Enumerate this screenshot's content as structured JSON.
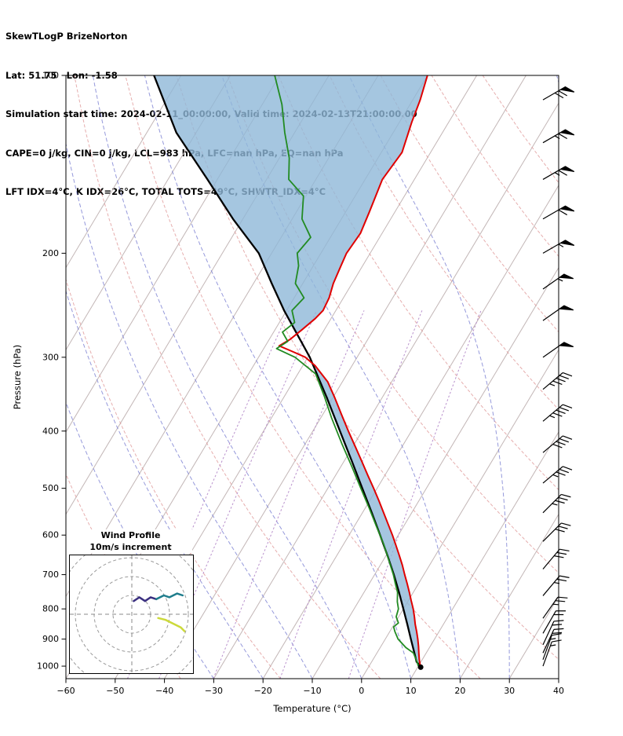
{
  "header": {
    "title": "SkewTLogP BrizeNorton",
    "location_line": "Lat: 51.75   Lon: -1.58",
    "time_line": "Simulation start time: 2024-02-11_00:00:00, Valid time: 2024-02-13T21:00:00.00",
    "indices_line_1": "CAPE=0 j/kg, CIN=0 j/kg, LCL=983 hPa, LFC=nan hPa, EQ=nan hPa",
    "indices_line_2": "LFT IDX=4°C, K IDX=26°C, TOTAL TOTS=49°C, SHWTR_IDX=4°C"
  },
  "chart_data": {
    "type": "line",
    "variant": "skew-t-log-p",
    "x_axis": {
      "label": "Temperature (°C)",
      "min": -60,
      "max": 40,
      "ticks": [
        -60,
        -50,
        -40,
        -30,
        -20,
        -10,
        0,
        10,
        20,
        30,
        40
      ]
    },
    "y_axis": {
      "label": "Pressure (hPa)",
      "top": 100,
      "bottom": 1050,
      "scale": "log",
      "ticks": [
        100,
        200,
        300,
        400,
        500,
        600,
        700,
        800,
        900,
        1000
      ]
    },
    "background": {
      "isotherms": {
        "color": "#c2b6b6",
        "start": -110,
        "end": 40,
        "step": 10
      },
      "dry_adiabats": {
        "color": "#e09a9a",
        "theta_values_c": [
          -40,
          -20,
          0,
          20,
          40,
          60,
          80,
          100,
          120,
          140,
          160
        ]
      },
      "moist_adiabats": {
        "color": "#7b80d2",
        "start_temps_c": [
          -30,
          -20,
          -10,
          0,
          10,
          20,
          30,
          40
        ]
      },
      "mixing_ratio_lines": {
        "color": "#b286c8",
        "values_g_kg": [
          0.05,
          0.1,
          0.3,
          1,
          3
        ],
        "p_top": 250
      }
    },
    "fill_between_parcel_and_temperature": {
      "color": "#8fb8d8",
      "opacity": 0.8
    },
    "series": [
      {
        "name": "temperature",
        "color": "#e00000",
        "width": 2,
        "points": [
          [
            1000,
            10.4
          ],
          [
            975,
            9.4
          ],
          [
            950,
            8.5
          ],
          [
            925,
            7.6
          ],
          [
            900,
            6.6
          ],
          [
            875,
            5.5
          ],
          [
            850,
            4.3
          ],
          [
            825,
            3.2
          ],
          [
            800,
            2.0
          ],
          [
            775,
            0.6
          ],
          [
            750,
            -0.8
          ],
          [
            725,
            -2.3
          ],
          [
            700,
            -3.9
          ],
          [
            675,
            -5.5
          ],
          [
            650,
            -7.3
          ],
          [
            625,
            -9.2
          ],
          [
            600,
            -11.2
          ],
          [
            575,
            -13.4
          ],
          [
            550,
            -15.7
          ],
          [
            525,
            -18.1
          ],
          [
            500,
            -20.7
          ],
          [
            475,
            -23.5
          ],
          [
            450,
            -26.4
          ],
          [
            425,
            -29.5
          ],
          [
            400,
            -32.8
          ],
          [
            375,
            -36.2
          ],
          [
            350,
            -39.8
          ],
          [
            330,
            -43.0
          ],
          [
            310,
            -47.5
          ],
          [
            300,
            -50.5
          ],
          [
            293,
            -54.0
          ],
          [
            287,
            -57.2
          ],
          [
            280,
            -55.8
          ],
          [
            270,
            -54.6
          ],
          [
            258,
            -53.2
          ],
          [
            250,
            -52.6
          ],
          [
            238,
            -52.9
          ],
          [
            225,
            -53.8
          ],
          [
            210,
            -54.4
          ],
          [
            200,
            -54.8
          ],
          [
            185,
            -54.4
          ],
          [
            170,
            -55.2
          ],
          [
            150,
            -56.5
          ],
          [
            135,
            -55.8
          ],
          [
            120,
            -57.5
          ],
          [
            110,
            -58.5
          ],
          [
            100,
            -60.0
          ]
        ]
      },
      {
        "name": "dewpoint",
        "color": "#228b22",
        "width": 1.8,
        "points": [
          [
            1000,
            10.0
          ],
          [
            983,
            9.2
          ],
          [
            950,
            7.4
          ],
          [
            930,
            5.2
          ],
          [
            900,
            2.6
          ],
          [
            875,
            1.1
          ],
          [
            858,
            0.2
          ],
          [
            845,
            0.7
          ],
          [
            825,
            -0.5
          ],
          [
            800,
            -1.0
          ],
          [
            778,
            -2.1
          ],
          [
            750,
            -3.2
          ],
          [
            725,
            -4.7
          ],
          [
            700,
            -6.2
          ],
          [
            660,
            -9.0
          ],
          [
            620,
            -12.0
          ],
          [
            580,
            -15.5
          ],
          [
            540,
            -19.2
          ],
          [
            500,
            -23.3
          ],
          [
            460,
            -27.7
          ],
          [
            420,
            -32.6
          ],
          [
            380,
            -37.8
          ],
          [
            350,
            -41.8
          ],
          [
            320,
            -46.4
          ],
          [
            300,
            -52.6
          ],
          [
            290,
            -57.4
          ],
          [
            282,
            -56.0
          ],
          [
            272,
            -58.2
          ],
          [
            262,
            -56.9
          ],
          [
            250,
            -58.9
          ],
          [
            238,
            -58.0
          ],
          [
            225,
            -61.5
          ],
          [
            210,
            -63.0
          ],
          [
            200,
            -64.8
          ],
          [
            188,
            -64.0
          ],
          [
            175,
            -68.0
          ],
          [
            160,
            -70.5
          ],
          [
            150,
            -75.5
          ],
          [
            138,
            -78.0
          ],
          [
            125,
            -82.0
          ],
          [
            112,
            -86.0
          ],
          [
            100,
            -91.0
          ]
        ]
      },
      {
        "name": "parcel",
        "color": "#000000",
        "width": 2.3,
        "points": [
          [
            1000,
            10.4
          ],
          [
            983,
            9.1
          ],
          [
            950,
            7.6
          ],
          [
            900,
            5.2
          ],
          [
            850,
            2.7
          ],
          [
            800,
            0.0
          ],
          [
            750,
            -2.9
          ],
          [
            700,
            -6.1
          ],
          [
            650,
            -9.7
          ],
          [
            600,
            -13.7
          ],
          [
            550,
            -18.1
          ],
          [
            500,
            -23.0
          ],
          [
            450,
            -28.4
          ],
          [
            400,
            -34.5
          ],
          [
            350,
            -41.4
          ],
          [
            300,
            -49.6
          ],
          [
            275,
            -54.8
          ],
          [
            250,
            -60.5
          ],
          [
            225,
            -66.3
          ],
          [
            200,
            -72.6
          ],
          [
            175,
            -82.0
          ],
          [
            150,
            -92.0
          ],
          [
            125,
            -104.0
          ],
          [
            100,
            -115.5
          ]
        ]
      }
    ],
    "surface_marker": {
      "pressure_hpa": 1004,
      "temperature_c": 10.6,
      "color": "#000000"
    },
    "wind_barbs": {
      "units": "kt",
      "levels": [
        [
          110,
          70,
          240
        ],
        [
          130,
          65,
          240
        ],
        [
          150,
          65,
          240
        ],
        [
          175,
          60,
          240
        ],
        [
          200,
          55,
          240
        ],
        [
          230,
          55,
          235
        ],
        [
          260,
          50,
          235
        ],
        [
          300,
          50,
          235
        ],
        [
          340,
          45,
          230
        ],
        [
          385,
          45,
          230
        ],
        [
          435,
          40,
          230
        ],
        [
          490,
          35,
          230
        ],
        [
          550,
          35,
          225
        ],
        [
          615,
          30,
          225
        ],
        [
          685,
          30,
          220
        ],
        [
          760,
          25,
          220
        ],
        [
          830,
          25,
          215
        ],
        [
          880,
          20,
          210
        ],
        [
          920,
          20,
          205
        ],
        [
          950,
          20,
          205
        ],
        [
          975,
          15,
          200
        ],
        [
          1000,
          15,
          200
        ]
      ]
    },
    "hodograph": {
      "title": "Wind Profile",
      "subtitle": "10m/s increment",
      "ring_increment_ms": 10,
      "segments": [
        {
          "name": "mid-level",
          "color": "#3a2f80",
          "points_uv": [
            [
              1,
              7
            ],
            [
              4,
              9
            ],
            [
              7,
              7
            ],
            [
              10,
              9
            ],
            [
              13,
              8
            ]
          ]
        },
        {
          "name": "upper-level",
          "color": "#1f7d8c",
          "points_uv": [
            [
              13,
              8
            ],
            [
              17,
              10
            ],
            [
              20,
              9
            ],
            [
              24,
              11
            ],
            [
              27,
              10
            ]
          ]
        },
        {
          "name": "low-level",
          "color": "#ccd93a",
          "points_uv": [
            [
              14,
              -2
            ],
            [
              18,
              -3
            ],
            [
              22,
              -5
            ],
            [
              26,
              -7
            ],
            [
              28,
              -9
            ]
          ]
        }
      ]
    }
  }
}
